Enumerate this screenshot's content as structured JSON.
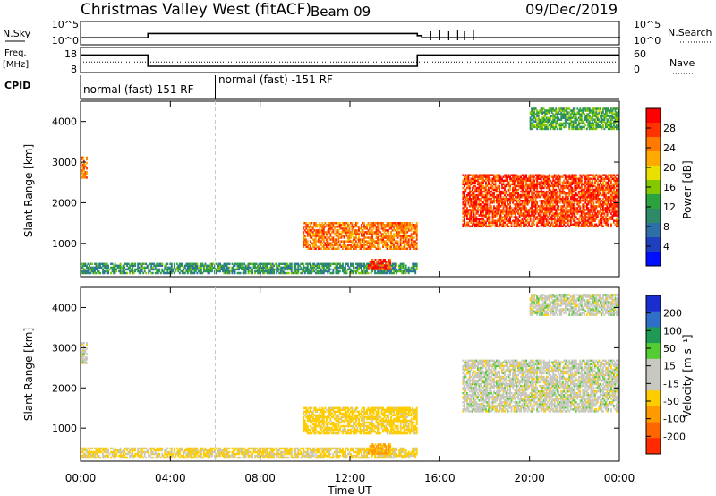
{
  "header": {
    "station": "Christmas Valley West (fitACF)",
    "beam": "Beam 09",
    "date": "09/Dec/2019"
  },
  "sky_panel": {
    "left_label": "N.Sky",
    "right_label": "N.Search",
    "left_ticks": [
      "10^5",
      "10^0"
    ],
    "right_ticks": [
      "10^5",
      "10^0"
    ]
  },
  "freq_panel": {
    "left_label_1": "Freq.",
    "left_label_2": "[MHz]",
    "right_label": "Nave",
    "left_ticks": [
      "18",
      "8"
    ],
    "right_ticks": [
      "60",
      "0"
    ]
  },
  "cpid": {
    "label": "CPID",
    "segments": [
      "normal (fast) 151 RF",
      "normal (fast) -151 RF"
    ]
  },
  "power_panel": {
    "ylabel": "Slant Range [km]",
    "colorbar_label": "Power [dB]",
    "colorbar_ticks": [
      "28",
      "24",
      "20",
      "16",
      "12",
      "8",
      "4"
    ],
    "colorbar_colors": [
      "#ff0000",
      "#ff3300",
      "#ff7a00",
      "#ffaa00",
      "#e8e000",
      "#84c800",
      "#2aa340",
      "#2f8a6a",
      "#2f6fa8",
      "#1f3fbf",
      "#0010ff"
    ]
  },
  "velocity_panel": {
    "ylabel": "Slant Range [km]",
    "colorbar_label": "Velocity [m s⁻¹]",
    "colorbar_ticks": [
      "200",
      "100",
      "50",
      "15",
      "-15",
      "-50",
      "-100",
      "-200"
    ],
    "colorbar_colors": [
      "#1a2ed0",
      "#2f6fc8",
      "#1e9a55",
      "#55cc33",
      "#c8c8c0",
      "#c8c8c0",
      "#ffcc00",
      "#ff9a00",
      "#ff6600",
      "#ff2a00"
    ]
  },
  "xaxis": {
    "label": "Time UT",
    "ticks": [
      "00:00",
      "04:00",
      "08:00",
      "12:00",
      "16:00",
      "20:00",
      "00:00"
    ]
  },
  "chart_data": {
    "type": "heatmap",
    "x_range_hours": [
      0,
      24
    ],
    "y_range_km": [
      180,
      4500
    ],
    "y_ticks": [
      1000,
      2000,
      3000,
      4000
    ],
    "sky_noise": [
      [
        0,
        0.25
      ],
      [
        3,
        0.45
      ],
      [
        15,
        0.35
      ],
      [
        15.2,
        0.25
      ],
      [
        24,
        0.3
      ]
    ],
    "frequency_mhz": [
      [
        0,
        15
      ],
      [
        3,
        15
      ],
      [
        3,
        10.5
      ],
      [
        15,
        10.5
      ],
      [
        15,
        15
      ],
      [
        24,
        15
      ]
    ],
    "nave_level": 0.42,
    "cpid_change_hour": 6,
    "scatter_regions": [
      {
        "name": "early-echo",
        "t": [
          0,
          0.3
        ],
        "r": [
          2600,
          3100
        ],
        "power_db": 24,
        "velocity": 0
      },
      {
        "name": "ground-scatter-low",
        "t": [
          0,
          15
        ],
        "r": [
          250,
          500
        ],
        "power_db": 10,
        "velocity": -20
      },
      {
        "name": "evening-patch",
        "t": [
          9.9,
          15
        ],
        "r": [
          850,
          1500
        ],
        "power_db": 24,
        "velocity": -30
      },
      {
        "name": "strong-core",
        "t": [
          12.8,
          13.8
        ],
        "r": [
          350,
          600
        ],
        "power_db": 28,
        "velocity": -60
      },
      {
        "name": "night-band",
        "t": [
          17,
          24
        ],
        "r": [
          1400,
          2700
        ],
        "power_db": 27,
        "velocity": 0
      },
      {
        "name": "high-range-scatter",
        "t": [
          20,
          24
        ],
        "r": [
          3800,
          4300
        ],
        "power_db": 12,
        "velocity": 0
      }
    ]
  }
}
